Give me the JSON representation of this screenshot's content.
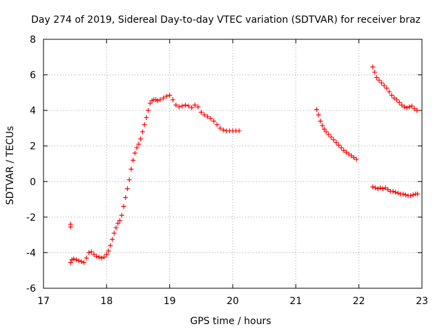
{
  "chart_data": {
    "type": "scatter",
    "title": "Day 274 of 2019, Sidereal Day-to-day VTEC variation (SDTVAR) for receiver braz",
    "xlabel": "GPS time / hours",
    "ylabel": "SDTVAR / TECUs",
    "xlim": [
      17,
      23
    ],
    "ylim": [
      -6,
      8
    ],
    "xticks": [
      17,
      18,
      19,
      20,
      21,
      22,
      23
    ],
    "yticks": [
      -6,
      -4,
      -2,
      0,
      2,
      4,
      6,
      8
    ],
    "grid": true,
    "marker": "+",
    "color": "#ff0000",
    "series": [
      {
        "name": "segment-1",
        "x": [
          17.43,
          17.43,
          17.43,
          17.45,
          17.48,
          17.52,
          17.56,
          17.6,
          17.64,
          17.68,
          17.72,
          17.76,
          17.8,
          17.84,
          17.88,
          17.92,
          17.96,
          18.0,
          18.03,
          18.06,
          18.09,
          18.12,
          18.15,
          18.18,
          18.21,
          18.24,
          18.27,
          18.3,
          18.33,
          18.36,
          18.39,
          18.42,
          18.45,
          18.48,
          18.51,
          18.54,
          18.57,
          18.6,
          18.63,
          18.66,
          18.69,
          18.72,
          18.75,
          18.78,
          18.81,
          18.85,
          18.9,
          18.95,
          19.0,
          19.05,
          19.1,
          19.15,
          19.2,
          19.25,
          19.3,
          19.35,
          19.4,
          19.45,
          19.5,
          19.55,
          19.6,
          19.65,
          19.7,
          19.75,
          19.8,
          19.85,
          19.9,
          19.95,
          20.0,
          20.05,
          20.1
        ],
        "y": [
          -2.4,
          -2.55,
          -4.55,
          -4.4,
          -4.35,
          -4.4,
          -4.45,
          -4.5,
          -4.55,
          -4.3,
          -4.0,
          -3.95,
          -4.1,
          -4.2,
          -4.25,
          -4.3,
          -4.25,
          -4.1,
          -3.9,
          -3.6,
          -3.25,
          -2.9,
          -2.6,
          -2.35,
          -2.2,
          -1.9,
          -1.4,
          -0.9,
          -0.4,
          0.1,
          0.7,
          1.2,
          1.6,
          1.9,
          2.1,
          2.4,
          2.8,
          3.2,
          3.6,
          4.0,
          4.4,
          4.55,
          4.6,
          4.6,
          4.55,
          4.6,
          4.7,
          4.8,
          4.85,
          4.6,
          4.3,
          4.2,
          4.25,
          4.3,
          4.25,
          4.15,
          4.3,
          4.2,
          3.9,
          3.75,
          3.65,
          3.55,
          3.4,
          3.2,
          3.0,
          2.9,
          2.85,
          2.85,
          2.85,
          2.85,
          2.85
        ]
      },
      {
        "name": "segment-2",
        "x": [
          21.33,
          21.36,
          21.39,
          21.42,
          21.45,
          21.48,
          21.52,
          21.56,
          21.6,
          21.64,
          21.68,
          21.72,
          21.76,
          21.8,
          21.84,
          21.88,
          21.92,
          21.96
        ],
        "y": [
          4.05,
          3.75,
          3.4,
          3.15,
          2.95,
          2.8,
          2.65,
          2.5,
          2.35,
          2.2,
          2.05,
          1.9,
          1.75,
          1.65,
          1.55,
          1.45,
          1.35,
          1.25
        ]
      },
      {
        "name": "segment-3",
        "x": [
          22.22,
          22.25,
          22.28,
          22.32,
          22.36,
          22.4,
          22.44,
          22.48,
          22.52,
          22.56,
          22.6,
          22.64,
          22.68,
          22.72,
          22.76,
          22.8,
          22.84,
          22.88,
          22.92
        ],
        "y": [
          6.45,
          6.15,
          5.85,
          5.7,
          5.55,
          5.4,
          5.25,
          5.05,
          4.85,
          4.7,
          4.6,
          4.45,
          4.3,
          4.2,
          4.15,
          4.2,
          4.25,
          4.1,
          4.0
        ]
      },
      {
        "name": "segment-4",
        "x": [
          22.22,
          22.26,
          22.3,
          22.34,
          22.38,
          22.42,
          22.46,
          22.5,
          22.54,
          22.58,
          22.62,
          22.66,
          22.7,
          22.74,
          22.78,
          22.82,
          22.86,
          22.9,
          22.93
        ],
        "y": [
          -0.3,
          -0.35,
          -0.4,
          -0.35,
          -0.4,
          -0.35,
          -0.45,
          -0.55,
          -0.55,
          -0.6,
          -0.65,
          -0.7,
          -0.7,
          -0.75,
          -0.8,
          -0.8,
          -0.75,
          -0.7,
          -0.7
        ]
      }
    ]
  }
}
